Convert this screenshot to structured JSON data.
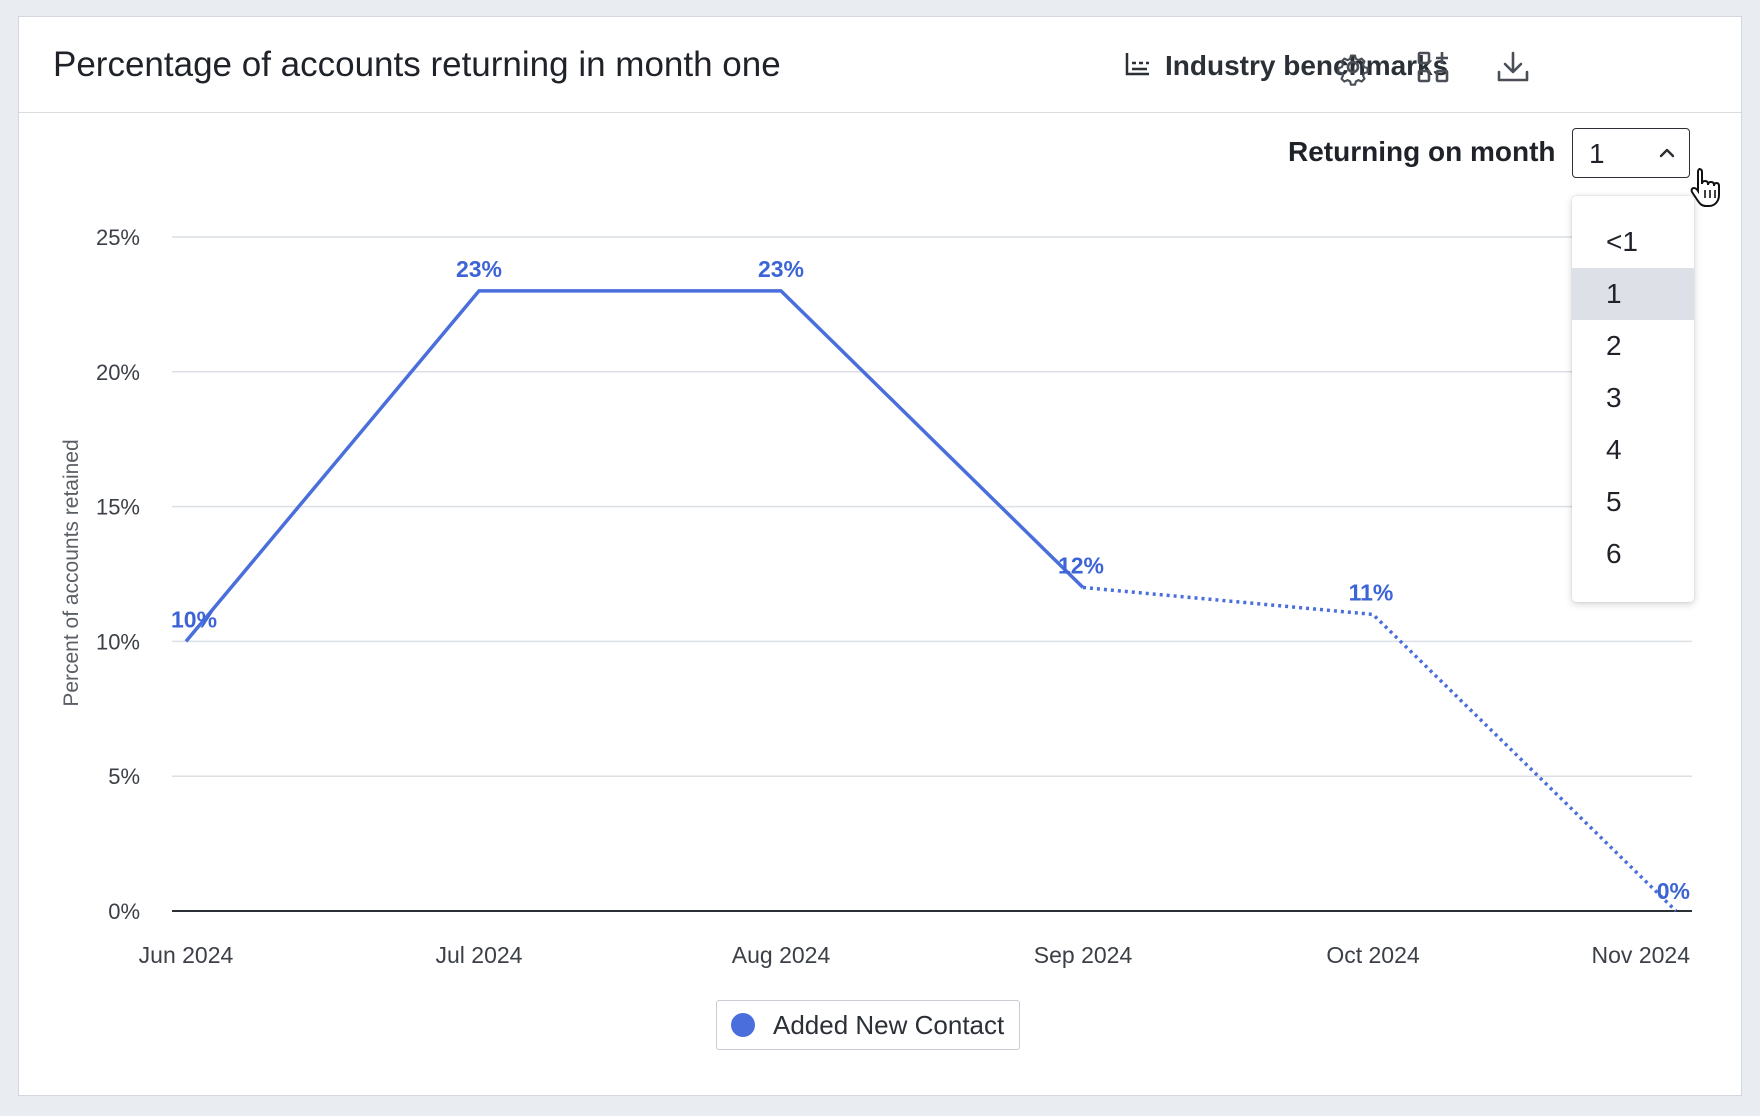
{
  "header": {
    "title": "Percentage of accounts returning in month one",
    "benchmarks_label": "Industry benchmarks",
    "icons": [
      "chart-axis-icon",
      "gear-icon",
      "add-widget-icon",
      "download-icon"
    ]
  },
  "control": {
    "label": "Returning on month",
    "selected": "1",
    "options": [
      "<1",
      "1",
      "2",
      "3",
      "4",
      "5",
      "6"
    ]
  },
  "colors": {
    "series": "#4a6fdc",
    "label": "#3d64d6"
  },
  "chart_data": {
    "type": "line",
    "title": "Percentage of accounts returning in month one",
    "ylabel": "Percent of accounts retained",
    "xlabel": "",
    "categories": [
      "Jun 2024",
      "Jul 2024",
      "Aug 2024",
      "Sep 2024",
      "Oct 2024",
      "Nov 2024"
    ],
    "yticks": [
      "0%",
      "5%",
      "10%",
      "15%",
      "20%",
      "25%"
    ],
    "ylim": [
      0,
      25
    ],
    "series": [
      {
        "name": "Added New Contact",
        "values": [
          10,
          23,
          23,
          12,
          11,
          0
        ],
        "labels": [
          "10%",
          "23%",
          "23%",
          "12%",
          "11%",
          "0%"
        ],
        "solid_until_index": 3
      }
    ],
    "legend": "bottom-center",
    "grid": true
  }
}
